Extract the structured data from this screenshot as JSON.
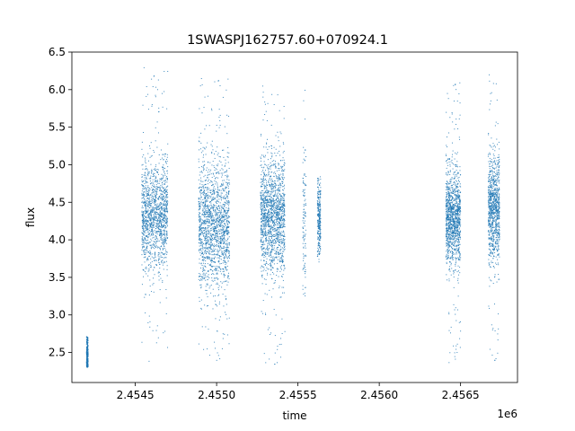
{
  "chart_data": {
    "type": "scatter",
    "title": "1SWASPJ162757.60+070924.1",
    "xlabel": "time",
    "ylabel": "flux",
    "x_offset_label": "1e6",
    "xlim": [
      2.45411,
      2.45685
    ],
    "ylim": [
      2.1,
      6.5
    ],
    "x_ticks": [
      2.4545,
      2.455,
      2.4555,
      2.456,
      2.4565
    ],
    "x_tick_labels": [
      "2.4545",
      "2.4550",
      "2.4555",
      "2.4560",
      "2.4565"
    ],
    "y_ticks": [
      2.5,
      3.0,
      3.5,
      4.0,
      4.5,
      5.0,
      5.5,
      6.0,
      6.5
    ],
    "y_tick_labels": [
      "2.5",
      "3.0",
      "3.5",
      "4.0",
      "4.5",
      "5.0",
      "5.5",
      "6.0",
      "6.5"
    ],
    "grid": false,
    "marker_color": "#1f77b4",
    "series": [
      {
        "clusters": [
          {
            "x_range": [
              2.4542,
              2.45421
            ],
            "y_center": 2.45,
            "y_spread": 0.15,
            "y_min": 2.3,
            "y_max": 2.72,
            "density": 0.2
          },
          {
            "x_range": [
              2.45454,
              2.4547
            ],
            "y_center": 4.3,
            "y_spread": 0.35,
            "y_min": 2.3,
            "y_max": 6.3,
            "density": 1.0
          },
          {
            "x_range": [
              2.45489,
              2.45508
            ],
            "y_center": 4.2,
            "y_spread": 0.4,
            "y_min": 2.35,
            "y_max": 6.15,
            "density": 1.2
          },
          {
            "x_range": [
              2.45527,
              2.45542
            ],
            "y_center": 4.3,
            "y_spread": 0.38,
            "y_min": 2.3,
            "y_max": 6.05,
            "density": 1.1
          },
          {
            "x_range": [
              2.45553,
              2.45555
            ],
            "y_center": 4.2,
            "y_spread": 0.5,
            "y_min": 3.25,
            "y_max": 6.1,
            "density": 0.08
          },
          {
            "x_range": [
              2.45562,
              2.45564
            ],
            "y_center": 4.3,
            "y_spread": 0.25,
            "y_min": 3.7,
            "y_max": 4.85,
            "density": 0.2
          },
          {
            "x_range": [
              2.45641,
              2.4565
            ],
            "y_center": 4.3,
            "y_spread": 0.3,
            "y_min": 2.3,
            "y_max": 6.1,
            "density": 0.9
          },
          {
            "x_range": [
              2.45667,
              2.45674
            ],
            "y_center": 4.4,
            "y_spread": 0.35,
            "y_min": 2.35,
            "y_max": 6.2,
            "density": 0.7
          }
        ]
      }
    ]
  }
}
